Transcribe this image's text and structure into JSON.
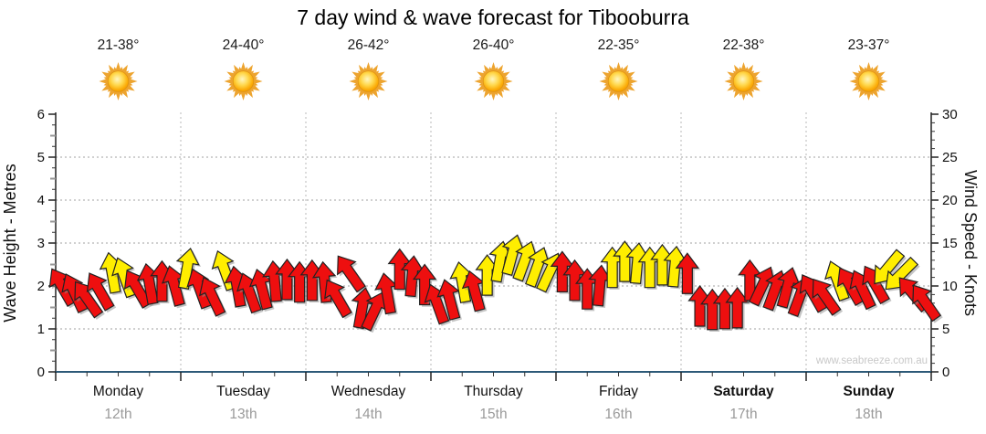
{
  "title": "7 day wind & wave forecast for Tibooburra",
  "watermark": "www.seabreeze.com.au",
  "left_axis": {
    "label": "Wave Height - Metres",
    "range": [
      0,
      6
    ],
    "ticks": [
      0,
      1,
      2,
      3,
      4,
      5,
      6
    ]
  },
  "right_axis": {
    "label": "Wind Speed - Knots",
    "range": [
      0,
      30
    ],
    "ticks": [
      0,
      5,
      10,
      15,
      20,
      25,
      30
    ]
  },
  "days": [
    {
      "name": "Monday",
      "date": "12th",
      "temp": "21-38°",
      "icon": "sun",
      "bold": false
    },
    {
      "name": "Tuesday",
      "date": "13th",
      "temp": "24-40°",
      "icon": "sun",
      "bold": false
    },
    {
      "name": "Wednesday",
      "date": "14th",
      "temp": "26-42°",
      "icon": "sun",
      "bold": false
    },
    {
      "name": "Thursday",
      "date": "15th",
      "temp": "26-40°",
      "icon": "sun",
      "bold": false
    },
    {
      "name": "Friday",
      "date": "16th",
      "temp": "22-35°",
      "icon": "sun",
      "bold": false
    },
    {
      "name": "Saturday",
      "date": "17th",
      "temp": "22-38°",
      "icon": "sun",
      "bold": true
    },
    {
      "name": "Sunday",
      "date": "18th",
      "temp": "23-37°",
      "icon": "sun",
      "bold": true
    }
  ],
  "colors": {
    "red": "#ee0f0f",
    "yellow": "#ffee00",
    "outline": "#222222",
    "shadow": "#8c8c8c",
    "grid": "#a0a0a0",
    "x_axis_line": "#2d5a78",
    "axis_line": "#222222",
    "text": "#111111",
    "date_text": "#9a9a9a",
    "watermark_text": "#c8c8c8",
    "sun_ray": "#eda42f",
    "sun_core_light": "#fff6c0",
    "sun_core_dark": "#f29500"
  },
  "chart_data": {
    "type": "wind-arrows",
    "description": "Arrow tip height = wind speed in knots (right axis) / wave metres (left axis); arrow rotation = wind direction; color = arrow category",
    "x_categories": [
      "Monday 12th",
      "Tuesday 13th",
      "Wednesday 14th",
      "Thursday 15th",
      "Friday 16th",
      "Saturday 17th",
      "Sunday 18th"
    ],
    "slots_per_day": 10,
    "ylim_left_metres": [
      0,
      6
    ],
    "ylim_right_knots": [
      0,
      30
    ],
    "arrows": [
      {
        "day": 0,
        "slot": 0,
        "knots": 12.3,
        "dir_deg": -30,
        "color": "red"
      },
      {
        "day": 0,
        "slot": 1,
        "knots": 11.6,
        "dir_deg": -25,
        "color": "red"
      },
      {
        "day": 0,
        "slot": 2,
        "knots": 10.9,
        "dir_deg": -35,
        "color": "red"
      },
      {
        "day": 0,
        "slot": 3,
        "knots": 11.8,
        "dir_deg": -30,
        "color": "red"
      },
      {
        "day": 0,
        "slot": 4,
        "knots": 13.9,
        "dir_deg": -10,
        "color": "yellow"
      },
      {
        "day": 0,
        "slot": 5,
        "knots": 13.4,
        "dir_deg": -20,
        "color": "yellow"
      },
      {
        "day": 0,
        "slot": 6,
        "knots": 12.1,
        "dir_deg": -30,
        "color": "red"
      },
      {
        "day": 0,
        "slot": 7,
        "knots": 12.6,
        "dir_deg": -10,
        "color": "red"
      },
      {
        "day": 0,
        "slot": 8,
        "knots": 12.9,
        "dir_deg": 0,
        "color": "red"
      },
      {
        "day": 0,
        "slot": 9,
        "knots": 12.4,
        "dir_deg": -15,
        "color": "red"
      },
      {
        "day": 1,
        "slot": 0,
        "knots": 14.4,
        "dir_deg": 10,
        "color": "yellow"
      },
      {
        "day": 1,
        "slot": 1,
        "knots": 12.1,
        "dir_deg": -20,
        "color": "red"
      },
      {
        "day": 1,
        "slot": 2,
        "knots": 11.2,
        "dir_deg": -25,
        "color": "red"
      },
      {
        "day": 1,
        "slot": 3,
        "knots": 14.2,
        "dir_deg": -20,
        "color": "yellow"
      },
      {
        "day": 1,
        "slot": 4,
        "knots": 12.3,
        "dir_deg": -10,
        "color": "red"
      },
      {
        "day": 1,
        "slot": 5,
        "knots": 11.6,
        "dir_deg": -20,
        "color": "red"
      },
      {
        "day": 1,
        "slot": 6,
        "knots": 12.0,
        "dir_deg": -15,
        "color": "red"
      },
      {
        "day": 1,
        "slot": 7,
        "knots": 12.9,
        "dir_deg": -5,
        "color": "red"
      },
      {
        "day": 1,
        "slot": 8,
        "knots": 13.1,
        "dir_deg": 0,
        "color": "red"
      },
      {
        "day": 1,
        "slot": 9,
        "knots": 12.8,
        "dir_deg": 0,
        "color": "red"
      },
      {
        "day": 2,
        "slot": 0,
        "knots": 13.0,
        "dir_deg": 0,
        "color": "red"
      },
      {
        "day": 2,
        "slot": 1,
        "knots": 12.8,
        "dir_deg": -5,
        "color": "red"
      },
      {
        "day": 2,
        "slot": 2,
        "knots": 11.0,
        "dir_deg": -30,
        "color": "red"
      },
      {
        "day": 2,
        "slot": 3,
        "knots": 13.9,
        "dir_deg": -35,
        "color": "red"
      },
      {
        "day": 2,
        "slot": 4,
        "knots": 9.8,
        "dir_deg": 10,
        "color": "red"
      },
      {
        "day": 2,
        "slot": 5,
        "knots": 9.5,
        "dir_deg": 25,
        "color": "red"
      },
      {
        "day": 2,
        "slot": 6,
        "knots": 11.5,
        "dir_deg": -10,
        "color": "red"
      },
      {
        "day": 2,
        "slot": 7,
        "knots": 14.3,
        "dir_deg": 0,
        "color": "red"
      },
      {
        "day": 2,
        "slot": 8,
        "knots": 13.5,
        "dir_deg": 5,
        "color": "red"
      },
      {
        "day": 2,
        "slot": 9,
        "knots": 12.5,
        "dir_deg": 0,
        "color": "red"
      },
      {
        "day": 3,
        "slot": 0,
        "knots": 10.3,
        "dir_deg": -20,
        "color": "red"
      },
      {
        "day": 3,
        "slot": 1,
        "knots": 10.8,
        "dir_deg": -15,
        "color": "red"
      },
      {
        "day": 3,
        "slot": 2,
        "knots": 12.8,
        "dir_deg": -10,
        "color": "yellow"
      },
      {
        "day": 3,
        "slot": 3,
        "knots": 11.8,
        "dir_deg": -15,
        "color": "red"
      },
      {
        "day": 3,
        "slot": 4,
        "knots": 13.6,
        "dir_deg": 0,
        "color": "yellow"
      },
      {
        "day": 3,
        "slot": 5,
        "knots": 15.2,
        "dir_deg": 10,
        "color": "yellow"
      },
      {
        "day": 3,
        "slot": 6,
        "knots": 16.0,
        "dir_deg": 15,
        "color": "yellow"
      },
      {
        "day": 3,
        "slot": 7,
        "knots": 15.3,
        "dir_deg": 20,
        "color": "yellow"
      },
      {
        "day": 3,
        "slot": 8,
        "knots": 14.6,
        "dir_deg": 20,
        "color": "yellow"
      },
      {
        "day": 3,
        "slot": 9,
        "knots": 14.0,
        "dir_deg": 25,
        "color": "yellow"
      },
      {
        "day": 4,
        "slot": 0,
        "knots": 14.0,
        "dir_deg": 0,
        "color": "red"
      },
      {
        "day": 4,
        "slot": 1,
        "knots": 13.0,
        "dir_deg": 0,
        "color": "red"
      },
      {
        "day": 4,
        "slot": 2,
        "knots": 12.0,
        "dir_deg": 0,
        "color": "red"
      },
      {
        "day": 4,
        "slot": 3,
        "knots": 12.4,
        "dir_deg": 5,
        "color": "red"
      },
      {
        "day": 4,
        "slot": 4,
        "knots": 14.5,
        "dir_deg": 0,
        "color": "yellow"
      },
      {
        "day": 4,
        "slot": 5,
        "knots": 15.2,
        "dir_deg": 0,
        "color": "yellow"
      },
      {
        "day": 4,
        "slot": 6,
        "knots": 15.0,
        "dir_deg": 5,
        "color": "yellow"
      },
      {
        "day": 4,
        "slot": 7,
        "knots": 14.5,
        "dir_deg": 0,
        "color": "yellow"
      },
      {
        "day": 4,
        "slot": 8,
        "knots": 14.8,
        "dir_deg": 0,
        "color": "yellow"
      },
      {
        "day": 4,
        "slot": 9,
        "knots": 14.6,
        "dir_deg": 5,
        "color": "yellow"
      },
      {
        "day": 5,
        "slot": 0,
        "knots": 13.8,
        "dir_deg": 0,
        "color": "red"
      },
      {
        "day": 5,
        "slot": 1,
        "knots": 10.0,
        "dir_deg": 0,
        "color": "red"
      },
      {
        "day": 5,
        "slot": 2,
        "knots": 9.6,
        "dir_deg": 0,
        "color": "red"
      },
      {
        "day": 5,
        "slot": 3,
        "knots": 9.7,
        "dir_deg": 0,
        "color": "red"
      },
      {
        "day": 5,
        "slot": 4,
        "knots": 9.8,
        "dir_deg": 0,
        "color": "red"
      },
      {
        "day": 5,
        "slot": 5,
        "knots": 13.0,
        "dir_deg": 0,
        "color": "red"
      },
      {
        "day": 5,
        "slot": 6,
        "knots": 12.4,
        "dir_deg": 25,
        "color": "red"
      },
      {
        "day": 5,
        "slot": 7,
        "knots": 11.9,
        "dir_deg": 20,
        "color": "red"
      },
      {
        "day": 5,
        "slot": 8,
        "knots": 12.2,
        "dir_deg": 15,
        "color": "red"
      },
      {
        "day": 5,
        "slot": 9,
        "knots": 11.2,
        "dir_deg": 20,
        "color": "red"
      },
      {
        "day": 6,
        "slot": 0,
        "knots": 11.6,
        "dir_deg": -30,
        "color": "red"
      },
      {
        "day": 6,
        "slot": 1,
        "knots": 11.2,
        "dir_deg": -35,
        "color": "red"
      },
      {
        "day": 6,
        "slot": 2,
        "knots": 13.0,
        "dir_deg": -20,
        "color": "yellow"
      },
      {
        "day": 6,
        "slot": 3,
        "knots": 12.4,
        "dir_deg": -30,
        "color": "red"
      },
      {
        "day": 6,
        "slot": 4,
        "knots": 12.0,
        "dir_deg": -25,
        "color": "red"
      },
      {
        "day": 6,
        "slot": 5,
        "knots": 12.6,
        "dir_deg": -30,
        "color": "red"
      },
      {
        "day": 6,
        "slot": 6,
        "knots": 14.4,
        "dir_deg": -140,
        "color": "yellow"
      },
      {
        "day": 6,
        "slot": 7,
        "knots": 13.6,
        "dir_deg": -135,
        "color": "yellow"
      },
      {
        "day": 6,
        "slot": 8,
        "knots": 11.5,
        "dir_deg": -40,
        "color": "red"
      },
      {
        "day": 6,
        "slot": 9,
        "knots": 10.5,
        "dir_deg": -35,
        "color": "red"
      }
    ]
  }
}
